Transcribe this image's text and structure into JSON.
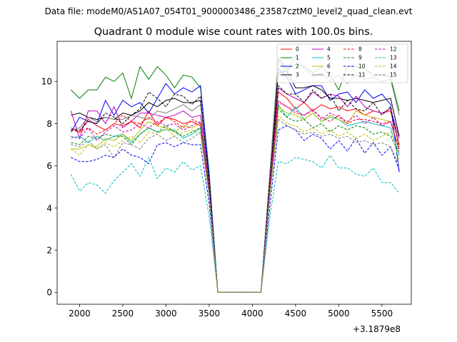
{
  "figure": {
    "suptitle": "Data file: modeM0/AS1A07_054T01_9000003486_23587cztM0_level2_quad_clean.evt"
  },
  "chart_data": {
    "type": "line",
    "title": "Quadrant 0 module wise count rates with 100.0s bins.",
    "xlabel": "",
    "ylabel": "",
    "x_offset_label": "+3.1879e8",
    "xlim": [
      1740,
      5840
    ],
    "ylim": [
      -0.56,
      11.9
    ],
    "xticks": [
      2000,
      2500,
      3000,
      3500,
      4000,
      4500,
      5000,
      5500
    ],
    "xtick_labels": [
      "2000",
      "2500",
      "3000",
      "3500",
      "4000",
      "4500",
      "5000",
      "5500"
    ],
    "yticks": [
      0,
      2,
      4,
      6,
      8,
      10
    ],
    "ytick_labels": [
      "0",
      "2",
      "4",
      "6",
      "8",
      "10"
    ],
    "grid": false,
    "legend_position": "top-right",
    "x": [
      1900,
      2000,
      2100,
      2200,
      2300,
      2400,
      2500,
      2600,
      2700,
      2800,
      2900,
      3000,
      3100,
      3200,
      3300,
      3400,
      3500,
      3600,
      3700,
      3800,
      3900,
      4000,
      4100,
      4200,
      4300,
      4400,
      4500,
      4600,
      4700,
      4800,
      4900,
      5000,
      5100,
      5200,
      5300,
      5400,
      5500,
      5600,
      5700
    ],
    "series": [
      {
        "name": "0",
        "color": "#ff0000",
        "dash": "solid",
        "values": [
          7.8,
          7.6,
          8.2,
          7.9,
          7.7,
          8.0,
          7.9,
          8.1,
          7.8,
          8.6,
          7.9,
          8.3,
          8.2,
          8.0,
          8.1,
          7.9,
          5.0,
          0,
          0,
          0,
          0,
          0,
          0,
          5.0,
          9.5,
          9.2,
          8.7,
          9.0,
          8.6,
          8.9,
          8.7,
          8.8,
          8.6,
          8.7,
          8.4,
          8.6,
          8.5,
          8.6,
          7.0
        ]
      },
      {
        "name": "1",
        "color": "#008000",
        "dash": "solid",
        "values": [
          9.6,
          9.2,
          9.6,
          9.6,
          10.2,
          10.0,
          10.4,
          9.2,
          10.7,
          10.1,
          10.7,
          10.3,
          9.7,
          10.3,
          10.2,
          9.7,
          5.7,
          0,
          0,
          0,
          0,
          0,
          0,
          5.5,
          11.1,
          10.6,
          10.8,
          10.7,
          10.4,
          10.7,
          10.3,
          9.6,
          10.7,
          10.7,
          10.6,
          10.3,
          10.3,
          10.2,
          8.6
        ]
      },
      {
        "name": "2",
        "color": "#0000ff",
        "dash": "solid",
        "values": [
          7.6,
          8.3,
          8.1,
          8.0,
          9.1,
          8.4,
          9.1,
          8.8,
          9.0,
          8.5,
          9.2,
          9.9,
          9.4,
          9.7,
          9.5,
          9.8,
          5.5,
          0,
          0,
          0,
          0,
          0,
          0,
          5.3,
          10.6,
          10.2,
          9.4,
          9.6,
          9.8,
          9.8,
          9.1,
          9.4,
          9.5,
          9.0,
          9.6,
          9.2,
          9.4,
          8.9,
          5.7
        ]
      },
      {
        "name": "3",
        "color": "#000000",
        "dash": "solid",
        "values": [
          8.4,
          8.5,
          8.3,
          8.2,
          8.3,
          8.2,
          8.5,
          8.4,
          8.6,
          9.0,
          8.8,
          9.1,
          9.2,
          9.0,
          9.0,
          9.1,
          5.3,
          0,
          0,
          0,
          0,
          0,
          0,
          5.2,
          10.4,
          10.5,
          9.7,
          9.7,
          9.8,
          9.6,
          9.2,
          9.2,
          9.1,
          9.2,
          9.1,
          9.0,
          9.1,
          9.2,
          7.4
        ]
      },
      {
        "name": "4",
        "color": "#bf00bf",
        "dash": "solid",
        "values": [
          8.6,
          7.3,
          8.6,
          8.6,
          8.0,
          8.8,
          7.8,
          8.1,
          8.5,
          8.5,
          8.4,
          8.3,
          8.4,
          8.6,
          8.3,
          8.4,
          5.2,
          0,
          0,
          0,
          0,
          0,
          0,
          5.1,
          9.7,
          9.4,
          9.2,
          9.0,
          9.5,
          9.2,
          9.4,
          9.3,
          8.8,
          9.3,
          8.8,
          8.6,
          8.5,
          8.7,
          7.3
        ]
      },
      {
        "name": "5",
        "color": "#00bfbf",
        "dash": "solid",
        "values": [
          7.3,
          7.4,
          7.1,
          7.4,
          7.2,
          7.4,
          7.5,
          7.1,
          7.5,
          7.8,
          7.6,
          7.7,
          7.7,
          7.3,
          7.5,
          7.8,
          4.8,
          0,
          0,
          0,
          0,
          0,
          0,
          4.7,
          8.9,
          8.3,
          8.8,
          8.2,
          8.5,
          8.1,
          8.3,
          8.2,
          7.9,
          8.0,
          8.1,
          8.0,
          7.9,
          7.8,
          6.5
        ]
      },
      {
        "name": "6",
        "color": "#bfbf00",
        "dash": "solid",
        "values": [
          6.8,
          6.8,
          7.0,
          6.9,
          7.3,
          7.2,
          7.5,
          7.2,
          7.7,
          8.1,
          7.9,
          7.8,
          7.6,
          7.9,
          7.8,
          8.0,
          4.7,
          0,
          0,
          0,
          0,
          0,
          0,
          4.6,
          8.8,
          8.5,
          8.4,
          8.2,
          8.5,
          8.1,
          8.4,
          8.2,
          8.0,
          8.6,
          8.4,
          8.3,
          8.2,
          8.1,
          6.8
        ]
      },
      {
        "name": "7",
        "color": "#7f7f7f",
        "dash": "solid",
        "values": [
          7.7,
          7.8,
          8.3,
          8.1,
          8.3,
          8.2,
          8.2,
          8.4,
          8.3,
          8.2,
          8.6,
          8.5,
          8.7,
          8.9,
          8.6,
          8.9,
          5.2,
          0,
          0,
          0,
          0,
          0,
          0,
          5.4,
          11.0,
          10.4,
          11.2,
          10.6,
          10.2,
          10.4,
          10.0,
          10.3,
          9.9,
          10.3,
          10.1,
          10.2,
          10.0,
          10.1,
          8.4
        ]
      },
      {
        "name": "8",
        "color": "#ff0000",
        "dash": "dashed",
        "values": [
          7.7,
          7.6,
          7.8,
          7.5,
          7.7,
          8.0,
          8.4,
          8.1,
          8.0,
          8.3,
          8.0,
          8.3,
          8.1,
          7.8,
          8.2,
          8.0,
          4.9,
          0,
          0,
          0,
          0,
          0,
          0,
          4.9,
          9.0,
          8.8,
          8.5,
          8.4,
          8.6,
          8.3,
          8.1,
          8.4,
          8.0,
          8.2,
          8.2,
          8.1,
          8.0,
          8.1,
          6.8
        ]
      },
      {
        "name": "9",
        "color": "#008000",
        "dash": "dashed",
        "values": [
          7.1,
          7.0,
          7.4,
          7.3,
          7.5,
          7.4,
          7.4,
          7.0,
          7.5,
          7.8,
          7.6,
          7.9,
          7.6,
          7.4,
          7.6,
          7.8,
          4.8,
          0,
          0,
          0,
          0,
          0,
          0,
          4.7,
          8.7,
          8.3,
          8.1,
          8.2,
          7.8,
          8.0,
          7.6,
          7.9,
          7.7,
          7.9,
          7.8,
          7.5,
          7.6,
          7.4,
          6.6
        ]
      },
      {
        "name": "10",
        "color": "#0000ff",
        "dash": "dashed",
        "values": [
          6.4,
          6.2,
          6.2,
          6.3,
          6.5,
          6.4,
          6.8,
          6.5,
          6.4,
          6.1,
          7.0,
          7.1,
          6.9,
          7.1,
          7.0,
          7.0,
          4.2,
          0,
          0,
          0,
          0,
          0,
          0,
          4.0,
          7.7,
          7.9,
          7.7,
          7.2,
          7.5,
          7.3,
          6.8,
          7.2,
          6.7,
          7.3,
          6.6,
          7.1,
          6.5,
          6.9,
          5.8
        ]
      },
      {
        "name": "11",
        "color": "#000000",
        "dash": "dashed",
        "values": [
          7.7,
          7.7,
          8.1,
          8.0,
          8.5,
          8.3,
          8.0,
          8.4,
          8.7,
          9.5,
          9.2,
          8.8,
          9.4,
          9.3,
          8.9,
          9.3,
          5.2,
          0,
          0,
          0,
          0,
          0,
          0,
          5.2,
          9.8,
          9.4,
          9.4,
          9.0,
          9.6,
          9.2,
          9.4,
          8.6,
          9.1,
          8.7,
          8.6,
          9.0,
          8.4,
          8.8,
          6.9
        ]
      },
      {
        "name": "12",
        "color": "#bf00bf",
        "dash": "dashed",
        "values": [
          7.4,
          7.3,
          7.8,
          7.2,
          7.6,
          7.9,
          7.6,
          7.7,
          8.0,
          7.8,
          8.1,
          7.9,
          8.0,
          7.7,
          7.9,
          8.1,
          4.9,
          0,
          0,
          0,
          0,
          0,
          0,
          4.8,
          9.1,
          8.8,
          8.6,
          8.4,
          8.7,
          8.2,
          8.5,
          8.3,
          8.1,
          8.4,
          8.0,
          8.3,
          7.9,
          8.1,
          6.7
        ]
      },
      {
        "name": "13",
        "color": "#00bfbf",
        "dash": "dashed",
        "values": [
          5.6,
          4.8,
          5.2,
          5.1,
          4.7,
          5.3,
          5.7,
          6.1,
          5.5,
          6.4,
          5.4,
          5.9,
          5.7,
          6.2,
          5.8,
          6.0,
          3.6,
          0,
          0,
          0,
          0,
          0,
          0,
          3.5,
          6.2,
          6.1,
          6.4,
          6.3,
          6.2,
          5.9,
          6.5,
          5.9,
          5.9,
          5.6,
          5.5,
          5.9,
          5.2,
          5.2,
          4.7
        ]
      },
      {
        "name": "14",
        "color": "#bfbf00",
        "dash": "dashed",
        "values": [
          6.8,
          6.5,
          7.0,
          6.8,
          7.1,
          6.9,
          7.2,
          7.4,
          7.1,
          7.6,
          7.5,
          7.8,
          7.4,
          7.6,
          7.7,
          7.5,
          4.6,
          0,
          0,
          0,
          0,
          0,
          0,
          4.5,
          8.4,
          8.0,
          7.9,
          7.6,
          7.8,
          7.5,
          7.7,
          7.4,
          7.6,
          7.3,
          7.5,
          7.2,
          7.4,
          7.6,
          6.3
        ]
      },
      {
        "name": "15",
        "color": "#7f7f7f",
        "dash": "dashed",
        "values": [
          7.0,
          6.9,
          7.2,
          6.8,
          7.0,
          6.4,
          7.1,
          7.0,
          6.8,
          7.3,
          7.5,
          7.2,
          7.4,
          7.1,
          7.3,
          7.6,
          4.6,
          0,
          0,
          0,
          0,
          0,
          0,
          4.5,
          8.2,
          7.9,
          7.7,
          7.5,
          7.6,
          7.4,
          7.5,
          7.3,
          7.4,
          7.1,
          7.2,
          7.0,
          7.1,
          6.9,
          6.0
        ]
      }
    ]
  }
}
